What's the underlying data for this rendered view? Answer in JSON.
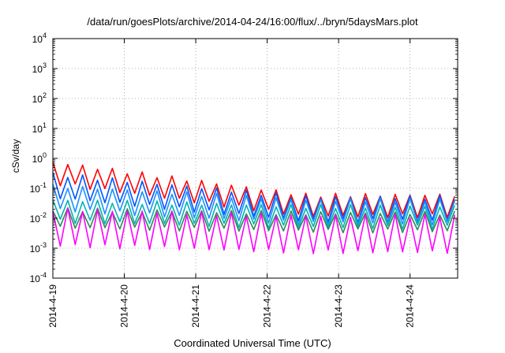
{
  "chart_data": {
    "type": "line",
    "title": "/data/run/goesPlots/archive/2014-04-24/16:00/flux/../bryn/5daysMars.plot",
    "xlabel": "Coordinated Universal Time (UTC)",
    "ylabel": "cSv/day",
    "yscale": "log",
    "ylim_exponents": [
      -4,
      4
    ],
    "ytick_exponents": [
      -4,
      -3,
      -2,
      -1,
      0,
      1,
      2,
      3,
      4
    ],
    "ytick_base": "10",
    "xlim": [
      "2014-4-19",
      "2014-4-24 16:00"
    ],
    "xticks": [
      "2014-4-19",
      "2014-4-20",
      "2014-4-21",
      "2014-4-22",
      "2014-4-23",
      "2014-4-24"
    ],
    "grid": true,
    "legend": "none",
    "sampling_interval_hours": 2.5,
    "series": [
      {
        "color": "#ff0000",
        "peaks_start": 0.75,
        "peaks_end": 0.06,
        "ratio": 5
      },
      {
        "color": "#0055ff",
        "peaks_start": 0.3,
        "peaks_end": 0.05,
        "ratio": 6
      },
      {
        "color": "#1e90ff",
        "peaks_start": 0.12,
        "peaks_end": 0.04,
        "ratio": 6
      },
      {
        "color": "#00b3b3",
        "peaks_start": 0.04,
        "peaks_end": 0.025,
        "ratio": 5
      },
      {
        "color": "#2e8b57",
        "peaks_start": 0.02,
        "peaks_end": 0.015,
        "ratio": 4
      },
      {
        "color": "#ff00ff",
        "peaks_start": 0.02,
        "peaks_end": 0.012,
        "ratio": 16
      }
    ]
  }
}
